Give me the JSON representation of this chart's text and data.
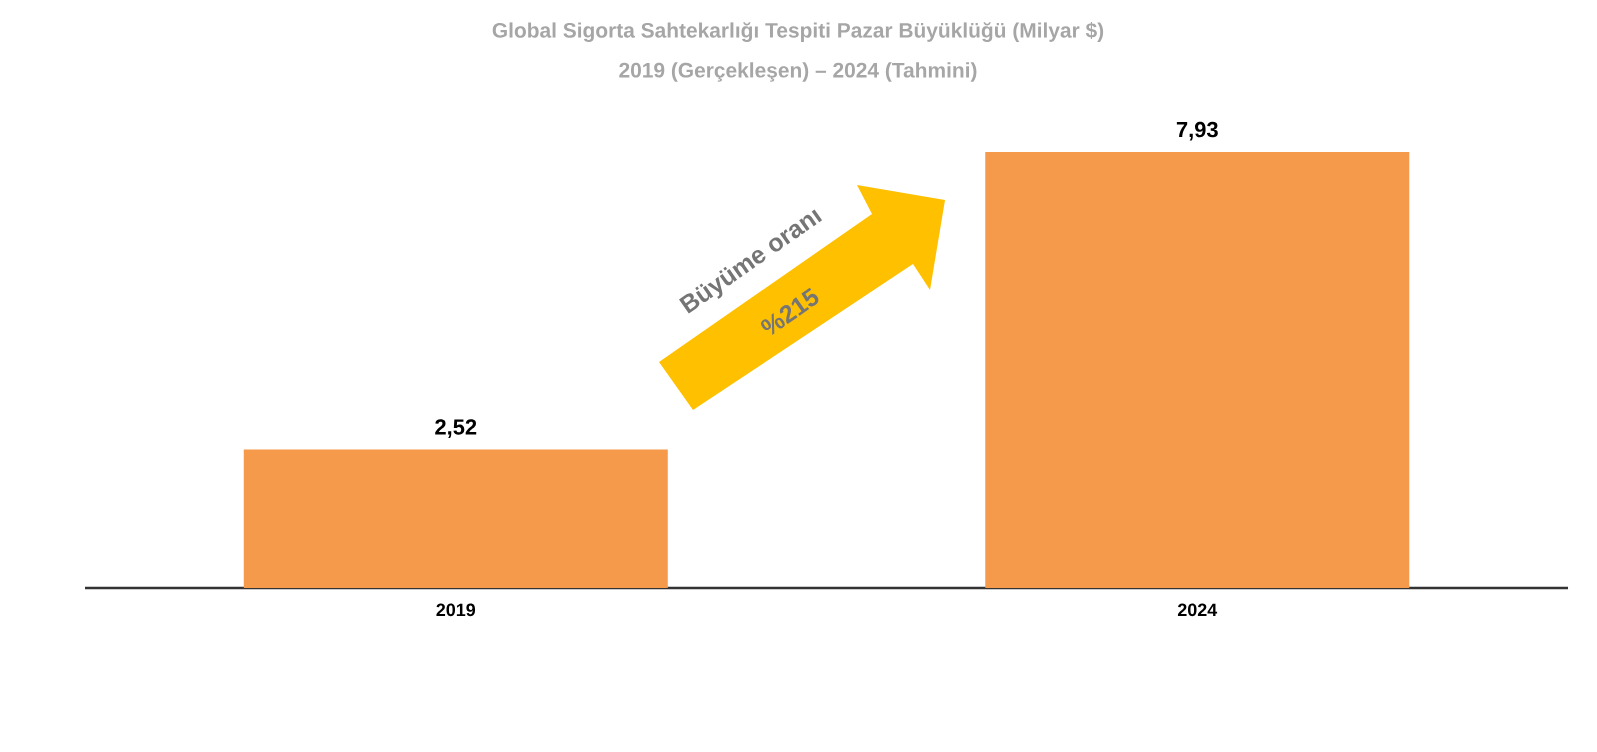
{
  "chart_data": {
    "type": "bar",
    "title": "Global Sigorta Sahtekarlığı Tespiti Pazar Büyüklüğü (Milyar $)",
    "subtitle": "2019 (Gerçekleşen) – 2024 (Tahmini)",
    "categories": [
      "2019",
      "2024"
    ],
    "values": [
      2.52,
      7.93
    ],
    "value_labels": [
      "2,52",
      "7,93"
    ],
    "color": "#f5994a",
    "annotations": [
      "Büyüme oranı",
      "%215"
    ],
    "tick_labels": "x"
  }
}
